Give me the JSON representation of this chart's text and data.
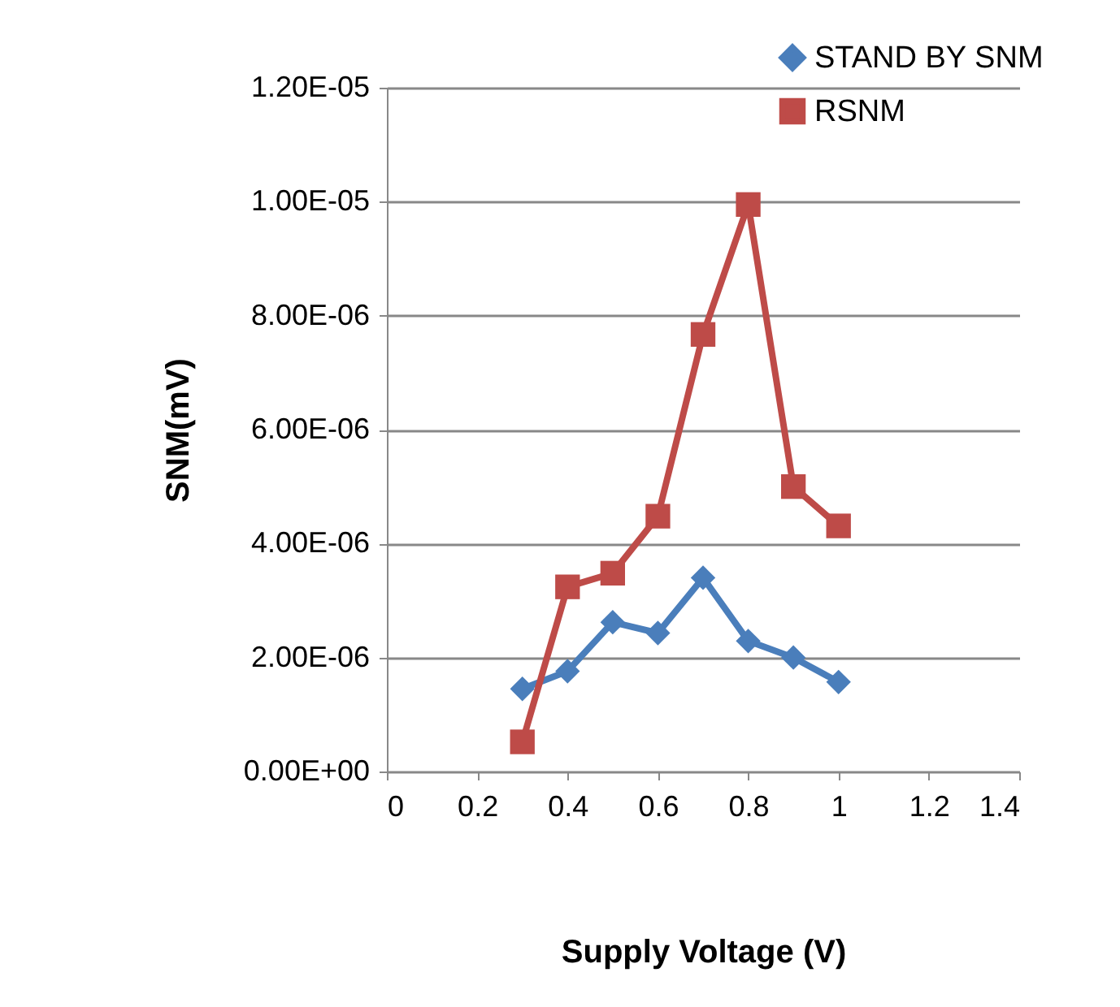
{
  "chart_data": {
    "type": "line",
    "xlabel": "Supply Voltage (V)",
    "ylabel": "SNM(mV)",
    "x": [
      0.3,
      0.4,
      0.5,
      0.6,
      0.7,
      0.8,
      0.9,
      1.0
    ],
    "series": [
      {
        "name": "STAND BY SNM",
        "color": "#4a7ebb",
        "marker": "diamond",
        "values": [
          1.45e-06,
          1.76e-06,
          2.62e-06,
          2.43e-06,
          3.4e-06,
          2.29e-06,
          2e-06,
          1.57e-06
        ]
      },
      {
        "name": "RSNM",
        "color": "#be4b48",
        "marker": "square",
        "values": [
          5.2e-07,
          3.24e-06,
          3.48e-06,
          4.48e-06,
          7.67e-06,
          9.95e-06,
          5e-06,
          4.31e-06
        ]
      }
    ],
    "xlim": [
      0,
      1.4
    ],
    "xticks": [
      0,
      0.2,
      0.4,
      0.6,
      0.8,
      1,
      1.2,
      1.4
    ],
    "ylim": [
      0,
      1.2e-05
    ],
    "yticks": [
      {
        "value": 0,
        "label": "0.00E+00"
      },
      {
        "value": 2e-06,
        "label": "2.00E-06"
      },
      {
        "value": 4e-06,
        "label": "4.00E-06"
      },
      {
        "value": 6e-06,
        "label": "6.00E-06"
      },
      {
        "value": 8e-06,
        "label": "8.00E-06"
      },
      {
        "value": 1e-05,
        "label": "1.00E-05"
      },
      {
        "value": 1.2e-05,
        "label": "1.20E-05"
      }
    ],
    "grid": "y",
    "legend": "top right",
    "line_style": "solid"
  }
}
